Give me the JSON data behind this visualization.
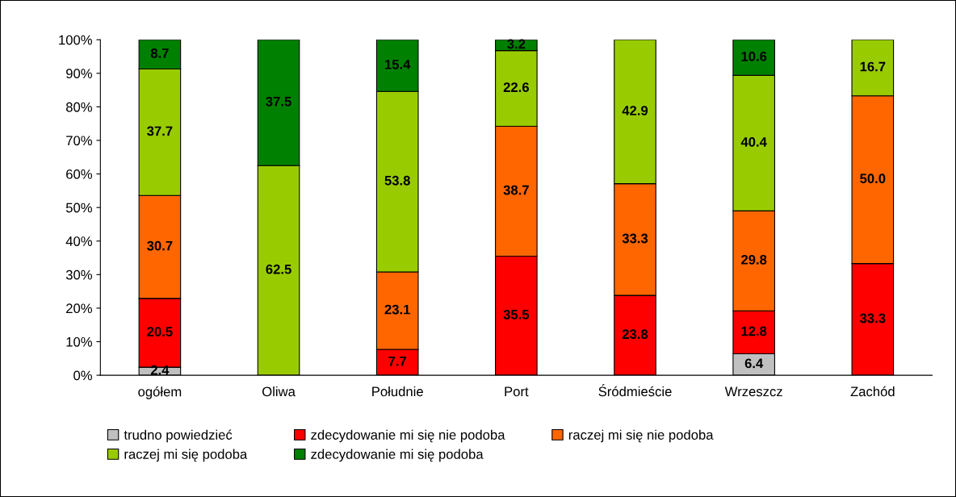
{
  "chart_data": {
    "type": "bar",
    "stacked": true,
    "categories": [
      "ogółem",
      "Oliwa",
      "Południe",
      "Port",
      "Śródmieście",
      "Wrzeszcz",
      "Zachód"
    ],
    "series": [
      {
        "name": "trudno powiedzieć",
        "color": "#c0c0c0",
        "values": [
          2.4,
          null,
          null,
          null,
          null,
          6.4,
          null
        ]
      },
      {
        "name": "zdecydowanie mi się nie podoba",
        "color": "#ff0000",
        "values": [
          20.5,
          null,
          7.7,
          35.5,
          23.8,
          12.8,
          33.3
        ]
      },
      {
        "name": "raczej mi się nie podoba",
        "color": "#ff6600",
        "values": [
          30.7,
          null,
          23.1,
          38.7,
          33.3,
          29.8,
          50.0
        ],
        "value_labels": [
          "30.7",
          null,
          "23.1",
          "38.7",
          "33.3",
          "29.8",
          "50.0"
        ]
      },
      {
        "name": "raczej mi się podoba",
        "color": "#99cc00",
        "values": [
          37.7,
          62.5,
          53.8,
          22.6,
          42.9,
          40.4,
          16.7
        ]
      },
      {
        "name": "zdecydowanie mi się podoba",
        "color": "#008000",
        "values": [
          8.7,
          37.5,
          15.4,
          3.2,
          null,
          10.6,
          null
        ]
      }
    ],
    "ylim": [
      0,
      100
    ],
    "yticks": [
      {
        "value": 0,
        "label": "0%"
      },
      {
        "value": 10,
        "label": "10%"
      },
      {
        "value": 20,
        "label": "20%"
      },
      {
        "value": 30,
        "label": "30%"
      },
      {
        "value": 40,
        "label": "40%"
      },
      {
        "value": 50,
        "label": "50%"
      },
      {
        "value": 60,
        "label": "60%"
      },
      {
        "value": 70,
        "label": "70%"
      },
      {
        "value": 80,
        "label": "80%"
      },
      {
        "value": 90,
        "label": "90%"
      },
      {
        "value": 100,
        "label": "100%"
      }
    ],
    "data_labels": true,
    "grid": false,
    "legend": "bottom"
  }
}
